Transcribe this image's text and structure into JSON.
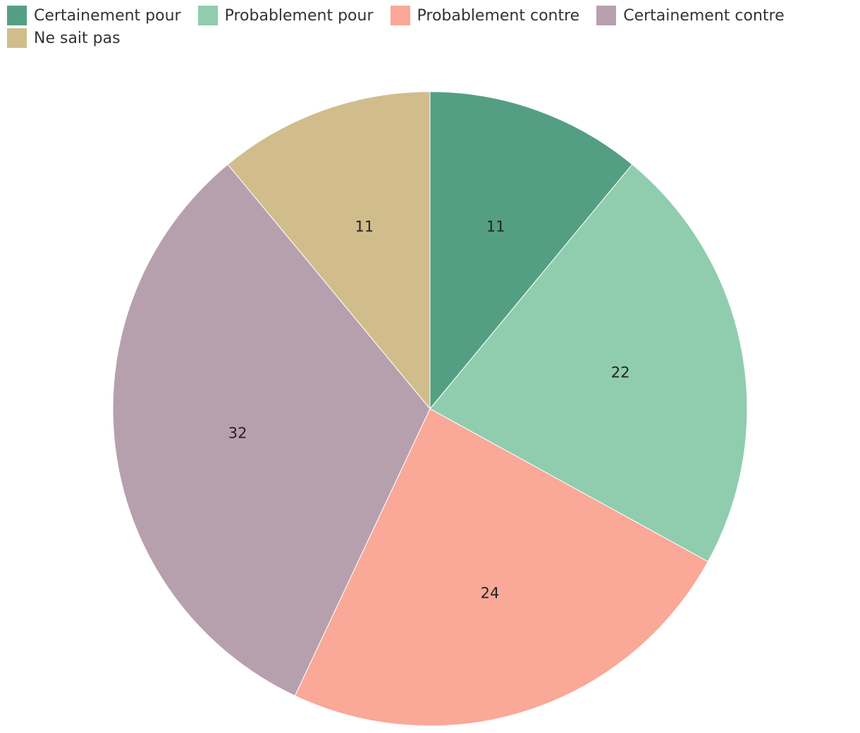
{
  "chart_data": {
    "type": "pie",
    "title": "",
    "legend_position": "top-left",
    "start_angle": "top",
    "direction": "clockwise",
    "series": [
      {
        "name": "Certainement pour",
        "value": 11,
        "label": "11",
        "color": "#549f83"
      },
      {
        "name": "Probablement pour",
        "value": 22,
        "label": "22",
        "color": "#8fcdae"
      },
      {
        "name": "Probablement contre",
        "value": 24,
        "label": "24",
        "color": "#faa898"
      },
      {
        "name": "Certainement contre",
        "value": 32,
        "label": "32",
        "color": "#b7a0ae"
      },
      {
        "name": "Ne sait pas",
        "value": 11,
        "label": "11",
        "color": "#d1bd8c"
      }
    ]
  }
}
